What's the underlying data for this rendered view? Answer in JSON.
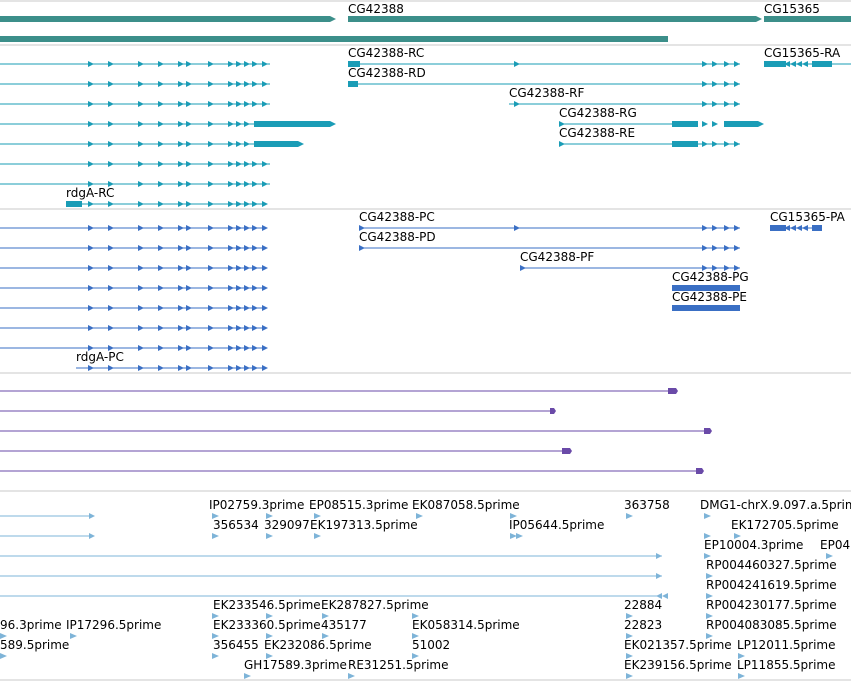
{
  "colors": {
    "gene": "#3c8f8a",
    "transcript": "#1a9cb6",
    "protein": "#3a6fc4",
    "alignment": "#6a4aa8",
    "est": "#7eb4d8",
    "divider": "#c8c8c8"
  },
  "gene_track": {
    "labels": [
      "CG42388",
      "CG15365"
    ]
  },
  "transcript_track": {
    "labels": [
      "CG42388-RC",
      "CG42388-RD",
      "CG42388-RF",
      "CG42388-RG",
      "CG42388-RE",
      "rdgA-RC",
      "CG15365-RA"
    ]
  },
  "protein_track": {
    "labels": [
      "CG42388-PC",
      "CG42388-PD",
      "CG42388-PF",
      "CG42388-PG",
      "CG42388-PE",
      "rdgA-PC",
      "CG15365-PA"
    ]
  },
  "est_track": {
    "labels": [
      "IP02759.3prime",
      "EP08515.3prime",
      "EK087058.5prime",
      "363758",
      "DMG1-chrX.9.097.a.5prim",
      "356534",
      "329097",
      "EK197313.5prime",
      "IP05644.5prime",
      "EK172705.5prime",
      "EP10004.3prime",
      "EP04",
      "RP004460327.5prime",
      "RP004241619.5prime",
      "EK233546.5prime",
      "EK287827.5prime",
      "22884",
      "RP004230177.5prime",
      "96.3prime",
      "IP17296.5prime",
      "EK233360.5prime",
      "435177",
      "EK058314.5prime",
      "22823",
      "RP004083085.5prime",
      "589.5prime",
      "356455",
      "EK232086.5prime",
      "51002",
      "EK021357.5prime",
      "LP12011.5prime",
      "GH17589.3prime",
      "RE31251.5prime",
      "EK239156.5prime",
      "LP11855.5prime"
    ]
  }
}
